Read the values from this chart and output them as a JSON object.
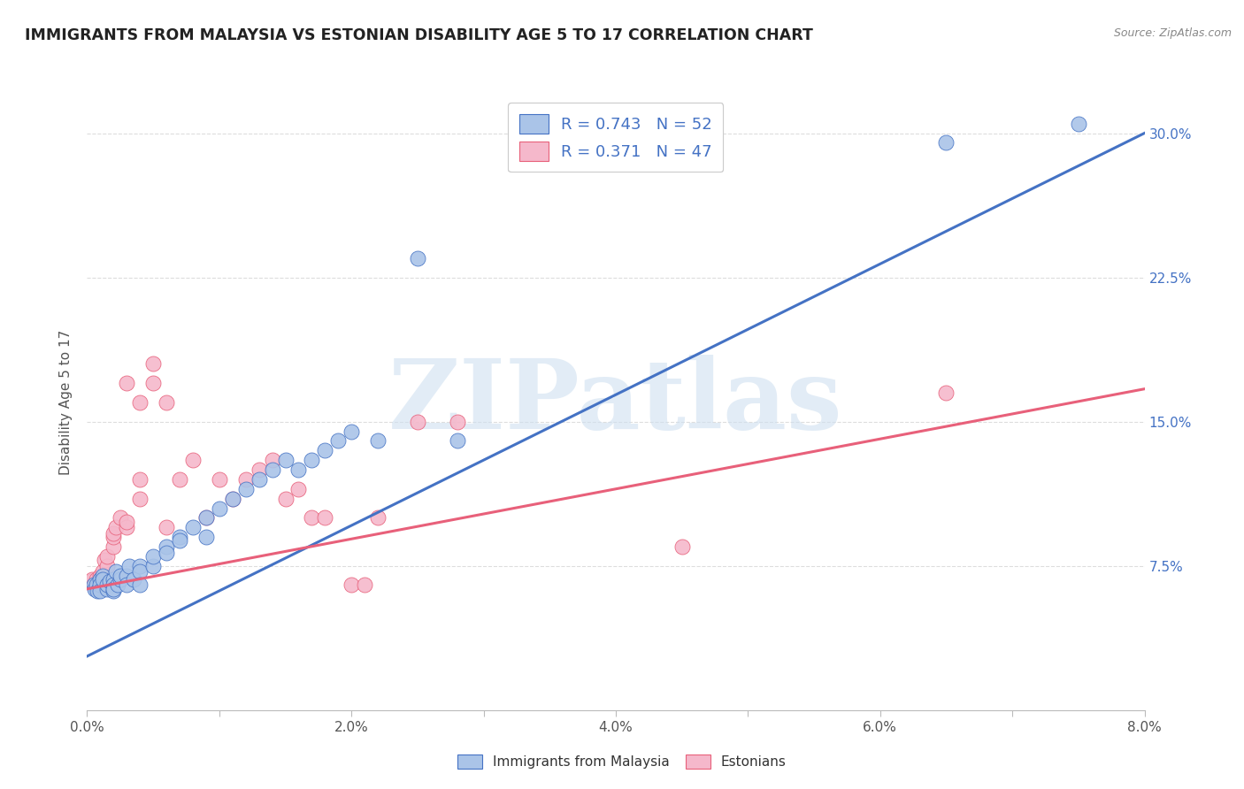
{
  "title": "IMMIGRANTS FROM MALAYSIA VS ESTONIAN DISABILITY AGE 5 TO 17 CORRELATION CHART",
  "source": "Source: ZipAtlas.com",
  "ylabel": "Disability Age 5 to 17",
  "xlim": [
    0.0,
    0.08
  ],
  "ylim": [
    0.0,
    0.32
  ],
  "xticks": [
    0.0,
    0.01,
    0.02,
    0.03,
    0.04,
    0.05,
    0.06,
    0.07,
    0.08
  ],
  "xticklabels": [
    "0.0%",
    "",
    "2.0%",
    "",
    "4.0%",
    "",
    "6.0%",
    "",
    "8.0%"
  ],
  "yticks_right": [
    0.075,
    0.15,
    0.225,
    0.3
  ],
  "ytick_right_labels": [
    "7.5%",
    "15.0%",
    "22.5%",
    "30.0%"
  ],
  "blue_R": 0.743,
  "blue_N": 52,
  "pink_R": 0.371,
  "pink_N": 47,
  "blue_color": "#aac4e8",
  "blue_line_color": "#4472c4",
  "pink_color": "#f5b8cb",
  "pink_line_color": "#e8607a",
  "watermark": "ZIPatlas",
  "watermark_color": "#cfe0f0",
  "legend_label_blue": "Immigrants from Malaysia",
  "legend_label_pink": "Estonians",
  "blue_scatter_x": [
    0.0005,
    0.0006,
    0.0007,
    0.0008,
    0.001,
    0.001,
    0.001,
    0.0012,
    0.0012,
    0.0015,
    0.0015,
    0.0017,
    0.002,
    0.002,
    0.002,
    0.002,
    0.0022,
    0.0023,
    0.0025,
    0.0025,
    0.003,
    0.003,
    0.0032,
    0.0035,
    0.004,
    0.004,
    0.004,
    0.005,
    0.005,
    0.006,
    0.006,
    0.007,
    0.007,
    0.008,
    0.009,
    0.009,
    0.01,
    0.011,
    0.012,
    0.013,
    0.014,
    0.015,
    0.016,
    0.017,
    0.018,
    0.019,
    0.02,
    0.022,
    0.025,
    0.028,
    0.065,
    0.075
  ],
  "blue_scatter_y": [
    0.065,
    0.063,
    0.065,
    0.062,
    0.068,
    0.065,
    0.062,
    0.07,
    0.068,
    0.063,
    0.065,
    0.067,
    0.068,
    0.065,
    0.062,
    0.063,
    0.072,
    0.065,
    0.068,
    0.07,
    0.07,
    0.065,
    0.075,
    0.068,
    0.075,
    0.072,
    0.065,
    0.075,
    0.08,
    0.085,
    0.082,
    0.09,
    0.088,
    0.095,
    0.09,
    0.1,
    0.105,
    0.11,
    0.115,
    0.12,
    0.125,
    0.13,
    0.125,
    0.13,
    0.135,
    0.14,
    0.145,
    0.14,
    0.235,
    0.14,
    0.295,
    0.305
  ],
  "pink_scatter_x": [
    0.0003,
    0.0004,
    0.0005,
    0.0006,
    0.0007,
    0.0008,
    0.001,
    0.001,
    0.001,
    0.0012,
    0.0013,
    0.0015,
    0.0015,
    0.002,
    0.002,
    0.002,
    0.0022,
    0.0025,
    0.003,
    0.003,
    0.003,
    0.004,
    0.004,
    0.004,
    0.005,
    0.005,
    0.006,
    0.006,
    0.007,
    0.008,
    0.009,
    0.01,
    0.011,
    0.012,
    0.013,
    0.014,
    0.015,
    0.016,
    0.017,
    0.018,
    0.02,
    0.021,
    0.022,
    0.025,
    0.028,
    0.045,
    0.065
  ],
  "pink_scatter_y": [
    0.067,
    0.068,
    0.065,
    0.065,
    0.068,
    0.063,
    0.07,
    0.068,
    0.065,
    0.072,
    0.078,
    0.075,
    0.08,
    0.085,
    0.09,
    0.092,
    0.095,
    0.1,
    0.095,
    0.098,
    0.17,
    0.12,
    0.11,
    0.16,
    0.17,
    0.18,
    0.095,
    0.16,
    0.12,
    0.13,
    0.1,
    0.12,
    0.11,
    0.12,
    0.125,
    0.13,
    0.11,
    0.115,
    0.1,
    0.1,
    0.065,
    0.065,
    0.1,
    0.15,
    0.15,
    0.085,
    0.165
  ],
  "blue_line_intercept": 0.028,
  "blue_line_slope": 3.4,
  "pink_line_intercept": 0.063,
  "pink_line_slope": 1.3,
  "background_color": "#ffffff",
  "grid_color": "#dddddd",
  "title_color": "#222222",
  "axis_label_color": "#555555"
}
